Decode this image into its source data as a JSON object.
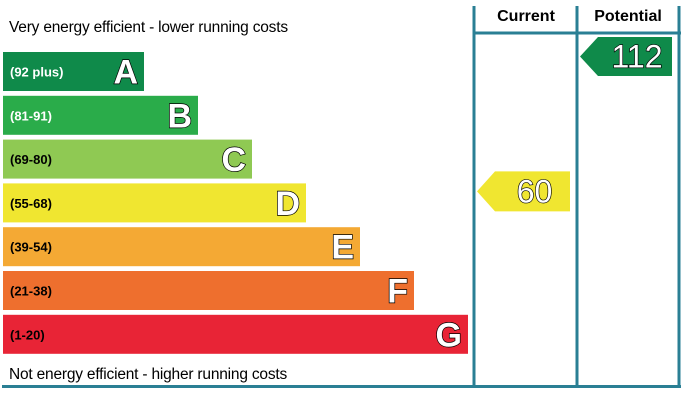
{
  "top_caption": "Very energy efficient - lower running costs",
  "bottom_caption": "Not energy efficient - higher running costs",
  "columns": {
    "current": "Current",
    "potential": "Potential"
  },
  "chart_data": {
    "type": "bar",
    "categories": [
      "A",
      "B",
      "C",
      "D",
      "E",
      "F",
      "G"
    ],
    "ranges": [
      "(92 plus)",
      "(81-91)",
      "(69-80)",
      "(55-68)",
      "(39-54)",
      "(21-38)",
      "(1-20)"
    ],
    "colors": [
      "#0f8a4a",
      "#2aac4a",
      "#8fc953",
      "#f0e630",
      "#f4a934",
      "#ee6f2e",
      "#e82436"
    ],
    "range_text_colors": [
      "#ffffff",
      "#ffffff",
      "#000000",
      "#000000",
      "#000000",
      "#000000",
      "#000000"
    ],
    "current": {
      "value": 60,
      "band": "D",
      "color": "#f0e630"
    },
    "potential": {
      "value": 112,
      "band": "A",
      "color": "#0f8a4a"
    },
    "border_color": "#2a7f94"
  }
}
